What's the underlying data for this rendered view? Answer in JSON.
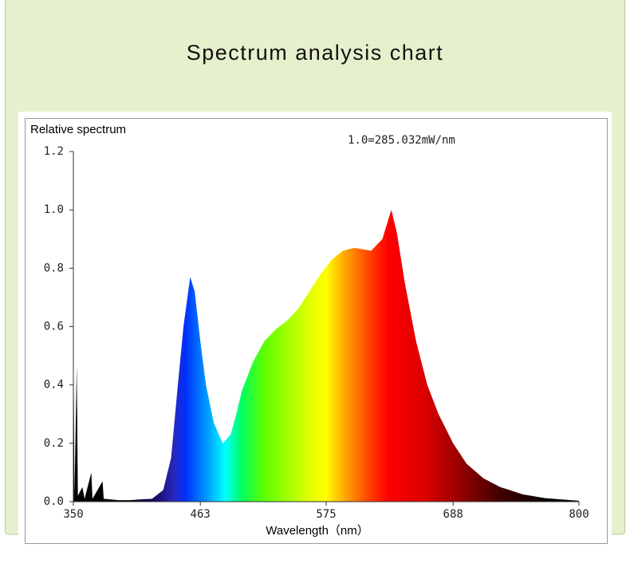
{
  "chart_data": {
    "type": "area",
    "title": "Spectrum analysis chart",
    "ylabel": "Relative spectrum",
    "annotation": "1.0=285.032mW/nm",
    "xlabel": "Wavelength（nm）",
    "x": [
      350,
      351,
      353,
      354,
      358,
      360,
      366,
      367,
      376,
      377,
      390,
      400,
      410,
      420,
      430,
      437,
      443,
      448,
      454,
      458,
      463,
      468,
      475,
      483,
      490,
      495,
      500,
      510,
      520,
      530,
      540,
      550,
      560,
      570,
      580,
      590,
      600,
      615,
      625,
      633,
      638,
      645,
      655,
      665,
      675,
      688,
      700,
      715,
      730,
      750,
      770,
      800
    ],
    "values": [
      0.62,
      0.02,
      0.47,
      0.02,
      0.05,
      0.01,
      0.1,
      0.01,
      0.07,
      0.01,
      0.005,
      0.005,
      0.008,
      0.01,
      0.04,
      0.15,
      0.4,
      0.6,
      0.77,
      0.72,
      0.55,
      0.4,
      0.27,
      0.2,
      0.23,
      0.3,
      0.38,
      0.48,
      0.55,
      0.59,
      0.62,
      0.66,
      0.72,
      0.78,
      0.83,
      0.86,
      0.87,
      0.86,
      0.9,
      1.0,
      0.92,
      0.75,
      0.55,
      0.4,
      0.3,
      0.2,
      0.13,
      0.08,
      0.05,
      0.025,
      0.012,
      0.003
    ],
    "xlim": [
      350,
      800
    ],
    "ylim": [
      0,
      1.2
    ],
    "xticks": [
      350,
      463,
      575,
      688,
      800
    ],
    "yticks": [
      {
        "value": 0,
        "label": "0.0"
      },
      0.2,
      0.4,
      0.6,
      0.8,
      {
        "value": 1,
        "label": "1.0"
      },
      1.2
    ]
  }
}
